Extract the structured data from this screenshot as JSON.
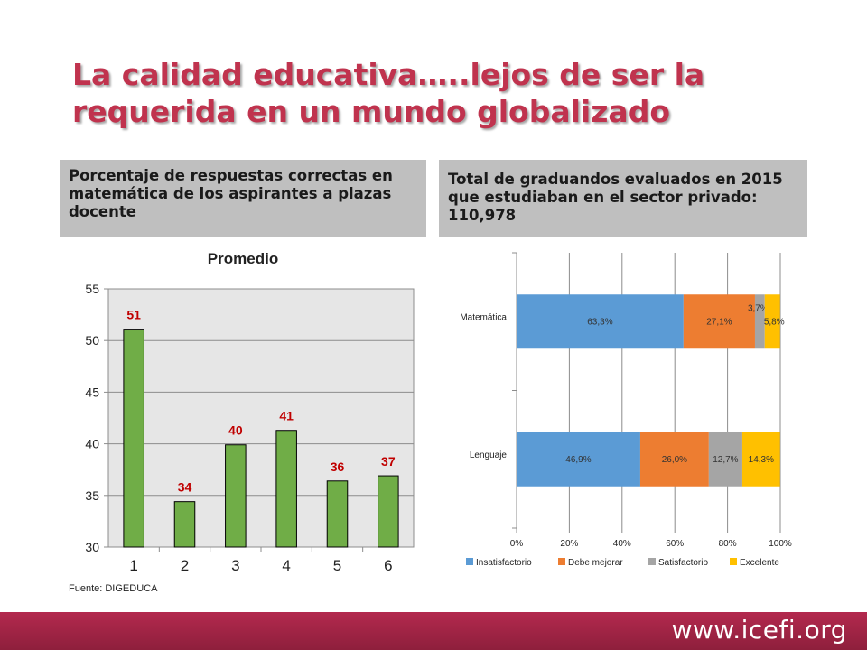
{
  "title": "La calidad educativa…..lejos de ser la requerida en un mundo globalizado",
  "panels": {
    "left": "Porcentaje de respuestas correctas en matemática de los aspirantes a plazas docente",
    "right": "Total de graduandos evaluados en 2015 que estudiaban en el sector privado: 110,978"
  },
  "source": "Fuente: DIGEDUCA",
  "footer_url": "www.icefi.org",
  "colors": {
    "title": "#c0334e",
    "bar_green": "#70ad47",
    "data_label": "#c00000",
    "insatisfactorio": "#5b9bd5",
    "debe_mejorar": "#ed7d31",
    "satisfactorio": "#a5a5a5",
    "excelente": "#ffc000",
    "footer": "#a3264a"
  },
  "chart_data": [
    {
      "type": "bar",
      "title": "Promedio",
      "categories": [
        "1",
        "2",
        "3",
        "4",
        "5",
        "6"
      ],
      "values": [
        51.1,
        34.4,
        39.9,
        41.3,
        36.4,
        36.9
      ],
      "data_labels": [
        "51",
        "34",
        "40",
        "41",
        "36",
        "37"
      ],
      "ylim": [
        30,
        55
      ],
      "yticks": [
        30,
        35,
        40,
        45,
        50,
        55
      ],
      "grid": true,
      "legend": false
    },
    {
      "type": "bar",
      "orientation": "horizontal",
      "stacked": "percent",
      "categories": [
        "Matemática",
        "Lenguaje"
      ],
      "series": [
        {
          "name": "Insatisfactorio",
          "values": [
            63.3,
            46.9
          ],
          "labels": [
            "63,3%",
            "46,9%"
          ]
        },
        {
          "name": "Debe mejorar",
          "values": [
            27.1,
            26.0
          ],
          "labels": [
            "27,1%",
            "26,0%"
          ]
        },
        {
          "name": "Satisfactorio",
          "values": [
            3.7,
            12.7
          ],
          "labels": [
            "3,7%",
            "12,7%"
          ]
        },
        {
          "name": "Excelente",
          "values": [
            5.8,
            14.3
          ],
          "labels": [
            "5,8%",
            "14,3%"
          ]
        }
      ],
      "xticks": [
        "0%",
        "20%",
        "40%",
        "60%",
        "80%",
        "100%"
      ],
      "xlim": [
        0,
        100
      ],
      "grid": true,
      "legend": "bottom"
    }
  ]
}
